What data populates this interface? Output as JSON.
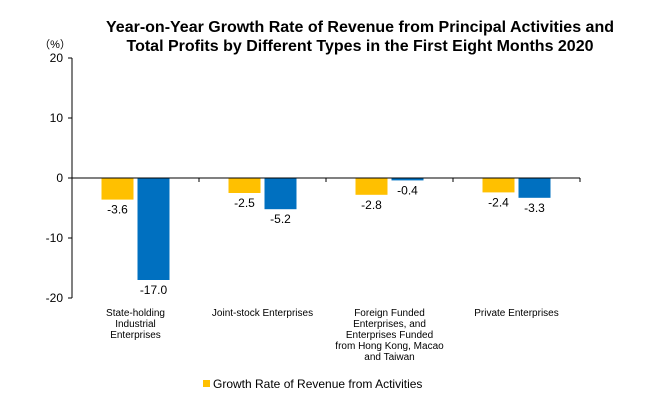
{
  "chart_data": {
    "type": "bar",
    "title_lines": [
      "Year-on-Year Growth Rate of Revenue from Principal Activities  and",
      "Total Profits by Different Types in the First Eight Months 2020"
    ],
    "unit": "（%）",
    "categories": [
      [
        "State-holding",
        "Industrial",
        "Enterprises"
      ],
      [
        "Joint-stock Enterprises"
      ],
      [
        "Foreign Funded",
        "Enterprises, and",
        "Enterprises Funded",
        "from Hong Kong, Macao",
        "and Taiwan"
      ],
      [
        "Private Enterprises"
      ]
    ],
    "series": [
      {
        "name": "Growth Rate of Revenue from Activities",
        "color": "#FFC000",
        "values": [
          -3.6,
          -2.5,
          -2.8,
          -2.4
        ]
      },
      {
        "name": "",
        "color": "#0070C0",
        "values": [
          -17.0,
          -5.2,
          -0.4,
          -3.3
        ]
      }
    ],
    "value_labels": [
      [
        "-3.6",
        "-2.5",
        "-2.8",
        "-2.4"
      ],
      [
        "-17.0",
        "-5.2",
        "-0.4",
        "-3.3"
      ]
    ],
    "ylim": [
      -20,
      20
    ],
    "yticks": [
      20,
      10,
      0,
      -10,
      -20
    ],
    "grid": false,
    "legend": "bottom"
  }
}
